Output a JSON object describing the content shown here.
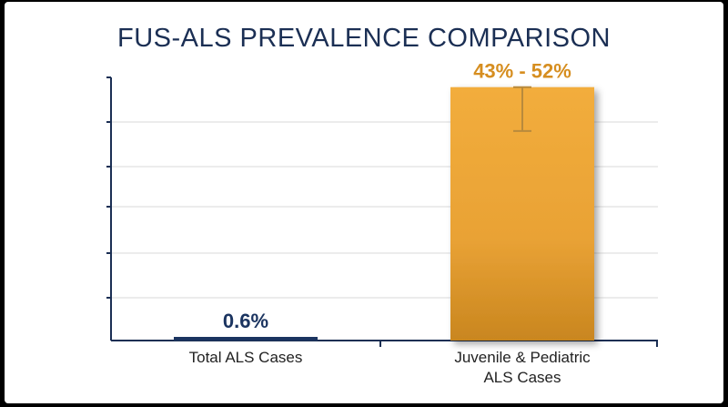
{
  "title": "FUS-ALS PREVALENCE COMPARISON",
  "colors": {
    "axis": "#1b2f54",
    "grid": "#d9d9d9",
    "bar_total": "#1b3460",
    "bar_juvenile": "#e9a235",
    "bar_juvenile_edge": "#c9861f",
    "label_total": "#1b3460",
    "label_juvenile": "#d68e20",
    "error_bar": "#b88a3c"
  },
  "chart_data": {
    "type": "bar",
    "categories": [
      "Total ALS Cases",
      "Juvenile & Pediatric ALS Cases"
    ],
    "category_lines": [
      [
        "Total ALS Cases"
      ],
      [
        "Juvenile & Pediatric",
        "ALS Cases"
      ]
    ],
    "values": [
      0.6,
      52
    ],
    "error_bars": [
      null,
      {
        "low": 43,
        "high": 52
      }
    ],
    "data_labels": [
      "0.6%",
      "43% - 52%"
    ],
    "ylim": [
      0,
      54
    ],
    "grid": true,
    "ylabel": "",
    "xlabel": ""
  }
}
